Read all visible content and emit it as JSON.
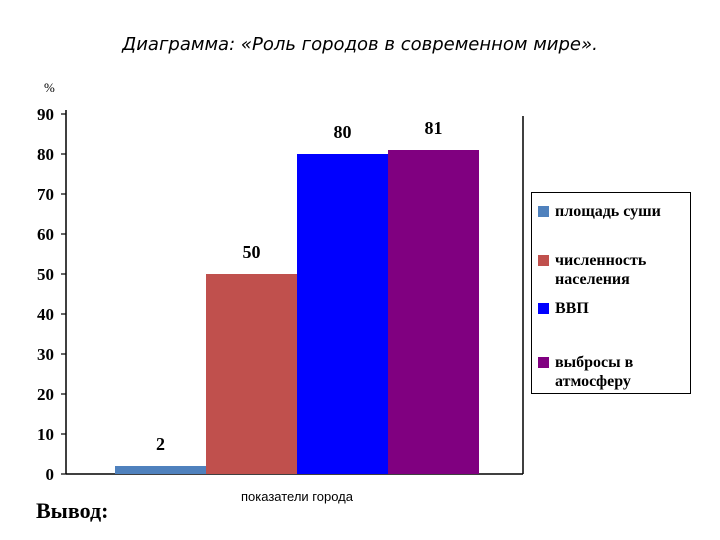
{
  "chart_data": {
    "type": "bar",
    "title": "Диаграмма: «Роль городов в современном мире».",
    "ylabel": "%",
    "xlabel": "показатели города",
    "ylim": [
      0,
      90
    ],
    "yticks": [
      0,
      10,
      20,
      30,
      40,
      50,
      60,
      70,
      80,
      90
    ],
    "grid": false,
    "legend_position": "right",
    "series": [
      {
        "name": "площадь суши",
        "value": 2,
        "color": "#4f81bd"
      },
      {
        "name": "численность населения",
        "value": 50,
        "color": "#c0504d"
      },
      {
        "name": "ВВП",
        "value": 80,
        "color": "#0000ff"
      },
      {
        "name": "выбросы в атмосферу",
        "value": 81,
        "color": "#800080"
      }
    ]
  },
  "footer": {
    "conclusion": "Вывод:"
  }
}
